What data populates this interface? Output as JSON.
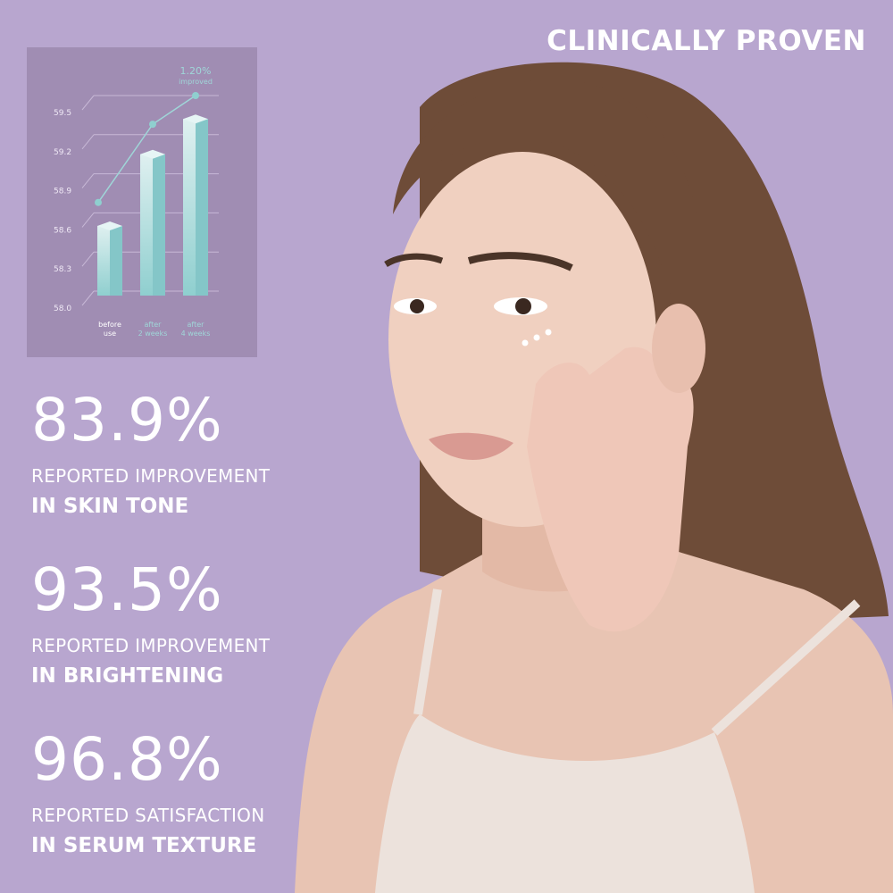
{
  "headline": "CLINICALLY PROVEN",
  "colors": {
    "background": "#b8a6cf",
    "chart_panel": "#a08db3",
    "bar": "#8fcfcf",
    "line": "#9fd6d8",
    "text": "#ffffff"
  },
  "stats": [
    {
      "value": "83.9%",
      "label": "REPORTED IMPROVEMENT",
      "emphasis": "IN SKIN TONE"
    },
    {
      "value": "93.5%",
      "label": "REPORTED IMPROVEMENT",
      "emphasis": "IN BRIGHTENING"
    },
    {
      "value": "96.8%",
      "label": "REPORTED SATISFACTION",
      "emphasis": "IN SERUM TEXTURE"
    }
  ],
  "chart_data": {
    "type": "bar",
    "categories": [
      "before use",
      "after 2 weeks",
      "after 4 weeks"
    ],
    "values": [
      58.5,
      59.05,
      59.32
    ],
    "line_values": [
      58.68,
      59.28,
      59.5
    ],
    "annotation": {
      "value": "1.20%",
      "text": "improved"
    },
    "yticks": [
      "58.0",
      "58.3",
      "58.6",
      "58.9",
      "59.2",
      "59.5"
    ],
    "ylim": [
      58.0,
      59.5
    ],
    "grid": true
  }
}
